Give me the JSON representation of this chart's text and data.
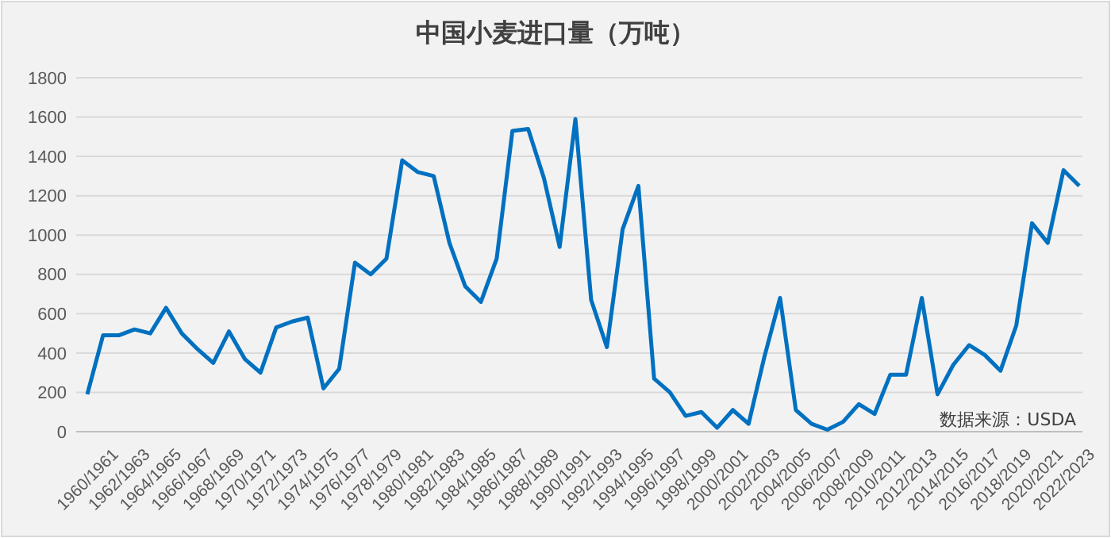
{
  "chart_data": {
    "type": "line",
    "title": "中国小麦进口量（万吨）",
    "categories": [
      "1960/1961",
      null,
      "1962/1963",
      null,
      "1964/1965",
      null,
      "1966/1967",
      null,
      "1968/1969",
      null,
      "1970/1971",
      null,
      "1972/1973",
      null,
      "1974/1975",
      null,
      "1976/1977",
      null,
      "1978/1979",
      null,
      "1980/1981",
      null,
      "1982/1983",
      null,
      "1984/1985",
      null,
      "1986/1987",
      null,
      "1988/1989",
      null,
      "1990/1991",
      null,
      "1992/1993",
      null,
      "1994/1995",
      null,
      "1996/1997",
      null,
      "1998/1999",
      null,
      "2000/2001",
      null,
      "2002/2003",
      null,
      "2004/2005",
      null,
      "2006/2007",
      null,
      "2008/2009",
      null,
      "2010/2011",
      null,
      "2012/2013",
      null,
      "2014/2015",
      null,
      "2016/2017",
      null,
      "2018/2019",
      null,
      "2020/2021",
      null,
      "2022/2023",
      null
    ],
    "series": [
      {
        "color": "#0070c0",
        "values": [
          190,
          490,
          490,
          520,
          500,
          630,
          500,
          420,
          350,
          510,
          370,
          300,
          530,
          560,
          580,
          220,
          320,
          860,
          800,
          880,
          1380,
          1320,
          1300,
          960,
          740,
          660,
          880,
          1530,
          1540,
          1290,
          940,
          1590,
          670,
          430,
          1030,
          1250,
          270,
          200,
          80,
          100,
          20,
          110,
          40,
          380,
          680,
          110,
          40,
          10,
          50,
          140,
          90,
          290,
          290,
          680,
          190,
          340,
          440,
          390,
          310,
          540,
          1060,
          960,
          1330,
          1250
        ]
      }
    ],
    "ylim": [
      0,
      1800
    ],
    "yticks": [
      0,
      200,
      400,
      600,
      800,
      1000,
      1200,
      1400,
      1600,
      1800
    ],
    "grid": "y",
    "marker": "none",
    "line_style": "solid",
    "annotations": [
      "数据来源：USDA"
    ]
  }
}
